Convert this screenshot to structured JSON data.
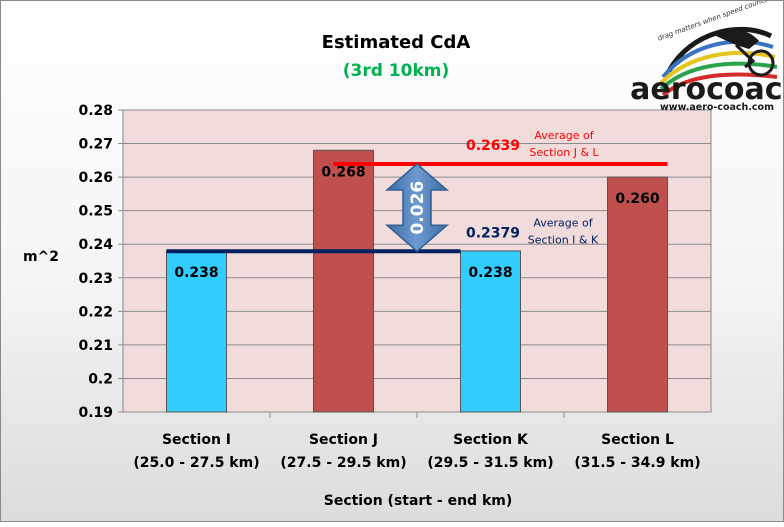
{
  "chart_data": {
    "type": "bar",
    "title": "Estimated CdA",
    "subtitle": "(3rd 10km)",
    "xlabel": "Section  (start - end  km)",
    "ylabel": "m^2",
    "ylim": [
      0.19,
      0.28
    ],
    "yticks": [
      "0.19",
      "0.2",
      "0.21",
      "0.22",
      "0.23",
      "0.24",
      "0.25",
      "0.26",
      "0.27",
      "0.28"
    ],
    "grid": true,
    "categories": [
      {
        "name": "Section I",
        "range": "(25.0 - 27.5 km)"
      },
      {
        "name": "Section J",
        "range": "(27.5 - 29.5 km)"
      },
      {
        "name": "Section K",
        "range": "(29.5 - 31.5 km)"
      },
      {
        "name": "Section L",
        "range": "(31.5 - 34.9 km)"
      }
    ],
    "values": [
      0.238,
      0.268,
      0.238,
      0.26
    ],
    "data_labels": [
      "0.238",
      "0.268",
      "0.238",
      "0.260"
    ],
    "bar_colors": [
      "#33ccff",
      "#c0504d",
      "#33ccff",
      "#c0504d"
    ],
    "averages": [
      {
        "value": 0.2639,
        "label": "0.2639",
        "text_line1": "Average of",
        "text_line2": "Section J & L",
        "color": "#ff0000"
      },
      {
        "value": 0.2379,
        "label": "0.2379",
        "text_line1": "Average of",
        "text_line2": "Section I & K",
        "color": "#002060"
      }
    ],
    "difference": {
      "label": "0.026",
      "color": "#4f81bd"
    }
  },
  "logo": {
    "word": "aerocoach",
    "url": "www.aero-coach.com",
    "tagline": "drag matters when speed counts"
  },
  "colors": {
    "title": "#000000",
    "subtitle": "#00b050",
    "plot_bg": "#f2dcdb"
  }
}
